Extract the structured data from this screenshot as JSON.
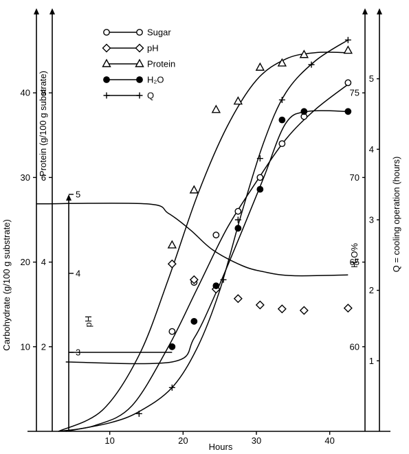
{
  "chart_data": {
    "type": "line",
    "title": "",
    "xlabel": "Hours",
    "xlim": [
      0,
      45
    ],
    "x_ticks": [
      10,
      20,
      30,
      40
    ],
    "axes": {
      "carbohydrate": {
        "label": "Carbohydrate (g/100 g substrate)",
        "lim": [
          0,
          50
        ],
        "ticks": [
          10,
          20,
          30,
          40
        ]
      },
      "protein": {
        "label": "Protein (g/100 g substrate)",
        "lim": [
          0,
          10
        ],
        "ticks": [
          2,
          4,
          6,
          8
        ]
      },
      "ph": {
        "label": "pH",
        "lim": [
          2,
          5
        ],
        "ticks": [
          3,
          4,
          5
        ]
      },
      "h2o": {
        "label": "H₂O%",
        "lim": [
          55,
          80
        ],
        "ticks": [
          60,
          65,
          70,
          75
        ]
      },
      "q": {
        "label": "Q = cooling operation (hours)",
        "lim": [
          0,
          6
        ],
        "ticks": [
          1,
          2,
          3,
          4,
          5
        ]
      }
    },
    "series": [
      {
        "name": "Sugar",
        "axis": "carbohydrate",
        "marker": "open-circle",
        "points": [
          [
            18.5,
            11.8
          ],
          [
            21.5,
            17.6
          ],
          [
            24.5,
            23.2
          ],
          [
            27.5,
            26.0
          ],
          [
            30.5,
            30.0
          ],
          [
            33.5,
            34.0
          ],
          [
            36.5,
            37.2
          ],
          [
            42.5,
            41.2
          ]
        ],
        "curve": [
          [
            3,
            0
          ],
          [
            8,
            0.7
          ],
          [
            13,
            3
          ],
          [
            18,
            10
          ],
          [
            22,
            17
          ],
          [
            26,
            24
          ],
          [
            30,
            29.5
          ],
          [
            34,
            34.5
          ],
          [
            38,
            38
          ],
          [
            42.5,
            41
          ]
        ]
      },
      {
        "name": "pH",
        "axis": "ph",
        "marker": "open-diamond",
        "points": [
          [
            18.5,
            4.12
          ],
          [
            21.5,
            3.92
          ],
          [
            24.5,
            3.8
          ],
          [
            27.5,
            3.68
          ],
          [
            30.5,
            3.6
          ],
          [
            33.5,
            3.55
          ],
          [
            36.5,
            3.53
          ],
          [
            42.5,
            3.56
          ]
        ],
        "curve": [
          [
            0,
            4.88
          ],
          [
            15,
            4.88
          ],
          [
            18,
            4.76
          ],
          [
            21,
            4.55
          ],
          [
            24,
            4.3
          ],
          [
            28,
            4.1
          ],
          [
            31,
            4.02
          ],
          [
            35,
            3.97
          ],
          [
            42.5,
            3.98
          ]
        ]
      },
      {
        "name": "Protein",
        "axis": "protein",
        "marker": "open-triangle",
        "points": [
          [
            18.5,
            4.4
          ],
          [
            21.5,
            5.7
          ],
          [
            24.5,
            7.6
          ],
          [
            27.5,
            7.8
          ],
          [
            30.5,
            8.6
          ],
          [
            33.5,
            8.7
          ],
          [
            36.5,
            8.9
          ],
          [
            42.5,
            9.0
          ]
        ],
        "curve": [
          [
            3,
            0
          ],
          [
            9,
            0.5
          ],
          [
            14,
            1.8
          ],
          [
            18,
            3.6
          ],
          [
            22,
            5.6
          ],
          [
            26,
            7.2
          ],
          [
            30,
            8.3
          ],
          [
            34,
            8.8
          ],
          [
            38,
            8.95
          ],
          [
            42.5,
            8.95
          ]
        ]
      },
      {
        "name": "H₂O",
        "axis": "h2o",
        "marker": "filled-circle",
        "points": [
          [
            18.5,
            60.0
          ],
          [
            21.5,
            61.5
          ],
          [
            24.5,
            63.6
          ],
          [
            27.5,
            67.0
          ],
          [
            30.5,
            69.3
          ],
          [
            33.5,
            73.4
          ],
          [
            36.5,
            73.9
          ],
          [
            42.5,
            73.9
          ]
        ],
        "curve": [
          [
            4,
            59.1
          ],
          [
            18.5,
            59.1
          ],
          [
            21.5,
            60.5
          ],
          [
            24.5,
            63.2
          ],
          [
            28,
            66.8
          ],
          [
            31,
            70
          ],
          [
            34,
            73.2
          ],
          [
            37,
            73.9
          ],
          [
            42.5,
            73.9
          ]
        ]
      },
      {
        "name": "Q",
        "axis": "q",
        "marker": "plus",
        "points": [
          [
            14,
            0.25
          ],
          [
            18.5,
            0.62
          ],
          [
            25.5,
            2.15
          ],
          [
            27.5,
            3.0
          ],
          [
            30.5,
            3.87
          ],
          [
            33.5,
            4.7
          ],
          [
            37.5,
            5.2
          ],
          [
            42.5,
            5.55
          ]
        ],
        "curve": [
          [
            4,
            0
          ],
          [
            10,
            0.12
          ],
          [
            14,
            0.28
          ],
          [
            18.5,
            0.62
          ],
          [
            22,
            1.2
          ],
          [
            25,
            2
          ],
          [
            28,
            3.1
          ],
          [
            31,
            4.1
          ],
          [
            34,
            4.8
          ],
          [
            38,
            5.25
          ],
          [
            42.5,
            5.55
          ]
        ]
      }
    ],
    "legend": {
      "position": "top-left",
      "entries": [
        "Sugar",
        "pH",
        "Protein",
        "H₂O",
        "Q"
      ]
    }
  }
}
